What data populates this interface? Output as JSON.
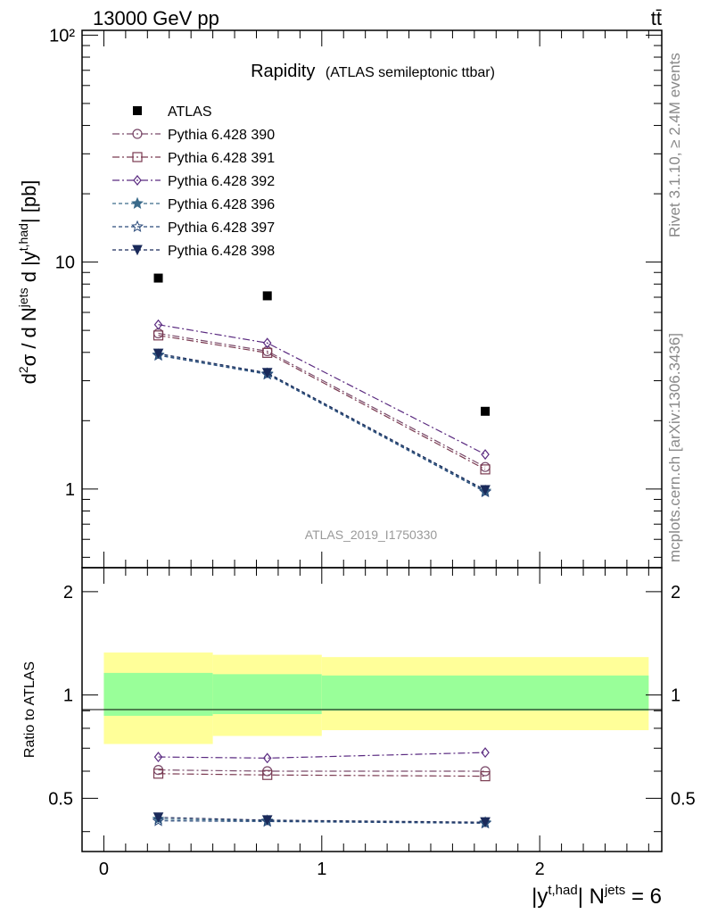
{
  "header": {
    "left": "13000 GeV pp",
    "right": "tt̄"
  },
  "side_labels": {
    "rivet": "Rivet 3.1.10, ≥ 2.4M events",
    "mcplots": "mcplots.cern.ch [arXiv:1306.3436]"
  },
  "chart_data": {
    "type": "scatter",
    "title": "Rapidity",
    "subtitle": "(ATLAS semileptonic ttbar)",
    "analysis_label": "ATLAS_2019_I1750330",
    "xlabel": "|y^{t,had}| N^{jets} = 6",
    "ylabel": "d²σ / d N^{jets} d |y^{t,had}| [pb]",
    "ratio_ylabel": "Ratio to ATLAS",
    "xlim": [
      -0.1,
      2.56
    ],
    "ylim": [
      0.45,
      105
    ],
    "yscale": "log",
    "ratio_ylim": [
      0.35,
      2.35
    ],
    "x_ticks": [
      "0",
      "1",
      "2"
    ],
    "y_ticks": [
      "1",
      "10",
      "10²"
    ],
    "ratio_ticks": [
      "0.5",
      "1",
      "2"
    ],
    "legend_position": "top-left",
    "x": [
      0.25,
      0.75,
      1.75
    ],
    "bins": [
      [
        0,
        0.5
      ],
      [
        0.5,
        1.0
      ],
      [
        1.0,
        2.5
      ]
    ],
    "data": {
      "name": "ATLAS",
      "values": [
        8.5,
        7.1,
        2.2
      ],
      "band_inner": [
        [
          0.87,
          1.16
        ],
        [
          0.88,
          1.15
        ],
        [
          0.9,
          1.14
        ]
      ],
      "band_outer": [
        [
          0.72,
          1.33
        ],
        [
          0.76,
          1.31
        ],
        [
          0.79,
          1.29
        ]
      ]
    },
    "series": [
      {
        "name": "Pythia 6.428 390",
        "values": [
          4.85,
          4.05,
          1.25
        ],
        "ratio": [
          0.605,
          0.6,
          0.6
        ],
        "color": "#7a4a6a",
        "marker": "circle",
        "dash": "8,3,2,3"
      },
      {
        "name": "Pythia 6.428 391",
        "values": [
          4.75,
          3.98,
          1.22
        ],
        "ratio": [
          0.59,
          0.585,
          0.58
        ],
        "color": "#7a3a50",
        "marker": "square",
        "dash": "8,3,2,3"
      },
      {
        "name": "Pythia 6.428 392",
        "values": [
          5.3,
          4.4,
          1.42
        ],
        "ratio": [
          0.66,
          0.655,
          0.68
        ],
        "color": "#5a2a80",
        "marker": "diamond",
        "dash": "8,3,2,3"
      },
      {
        "name": "Pythia 6.428 396",
        "values": [
          3.9,
          3.22,
          0.98
        ],
        "ratio": [
          0.435,
          0.43,
          0.425
        ],
        "color": "#3a6a8a",
        "marker": "star",
        "dash": "4,3"
      },
      {
        "name": "Pythia 6.428 397",
        "values": [
          3.88,
          3.2,
          0.97
        ],
        "ratio": [
          0.43,
          0.428,
          0.423
        ],
        "color": "#2a4a7a",
        "marker": "star-open",
        "dash": "4,3"
      },
      {
        "name": "Pythia 6.428 398",
        "values": [
          3.95,
          3.25,
          0.99
        ],
        "ratio": [
          0.44,
          0.432,
          0.426
        ],
        "color": "#1a2a5a",
        "marker": "triangle-down",
        "dash": "4,3"
      }
    ],
    "colors": {
      "data": "#000000",
      "band_inner": "#99ff99",
      "band_outer": "#ffff99",
      "analysis_label": "#999999",
      "side_label": "#888888"
    }
  }
}
